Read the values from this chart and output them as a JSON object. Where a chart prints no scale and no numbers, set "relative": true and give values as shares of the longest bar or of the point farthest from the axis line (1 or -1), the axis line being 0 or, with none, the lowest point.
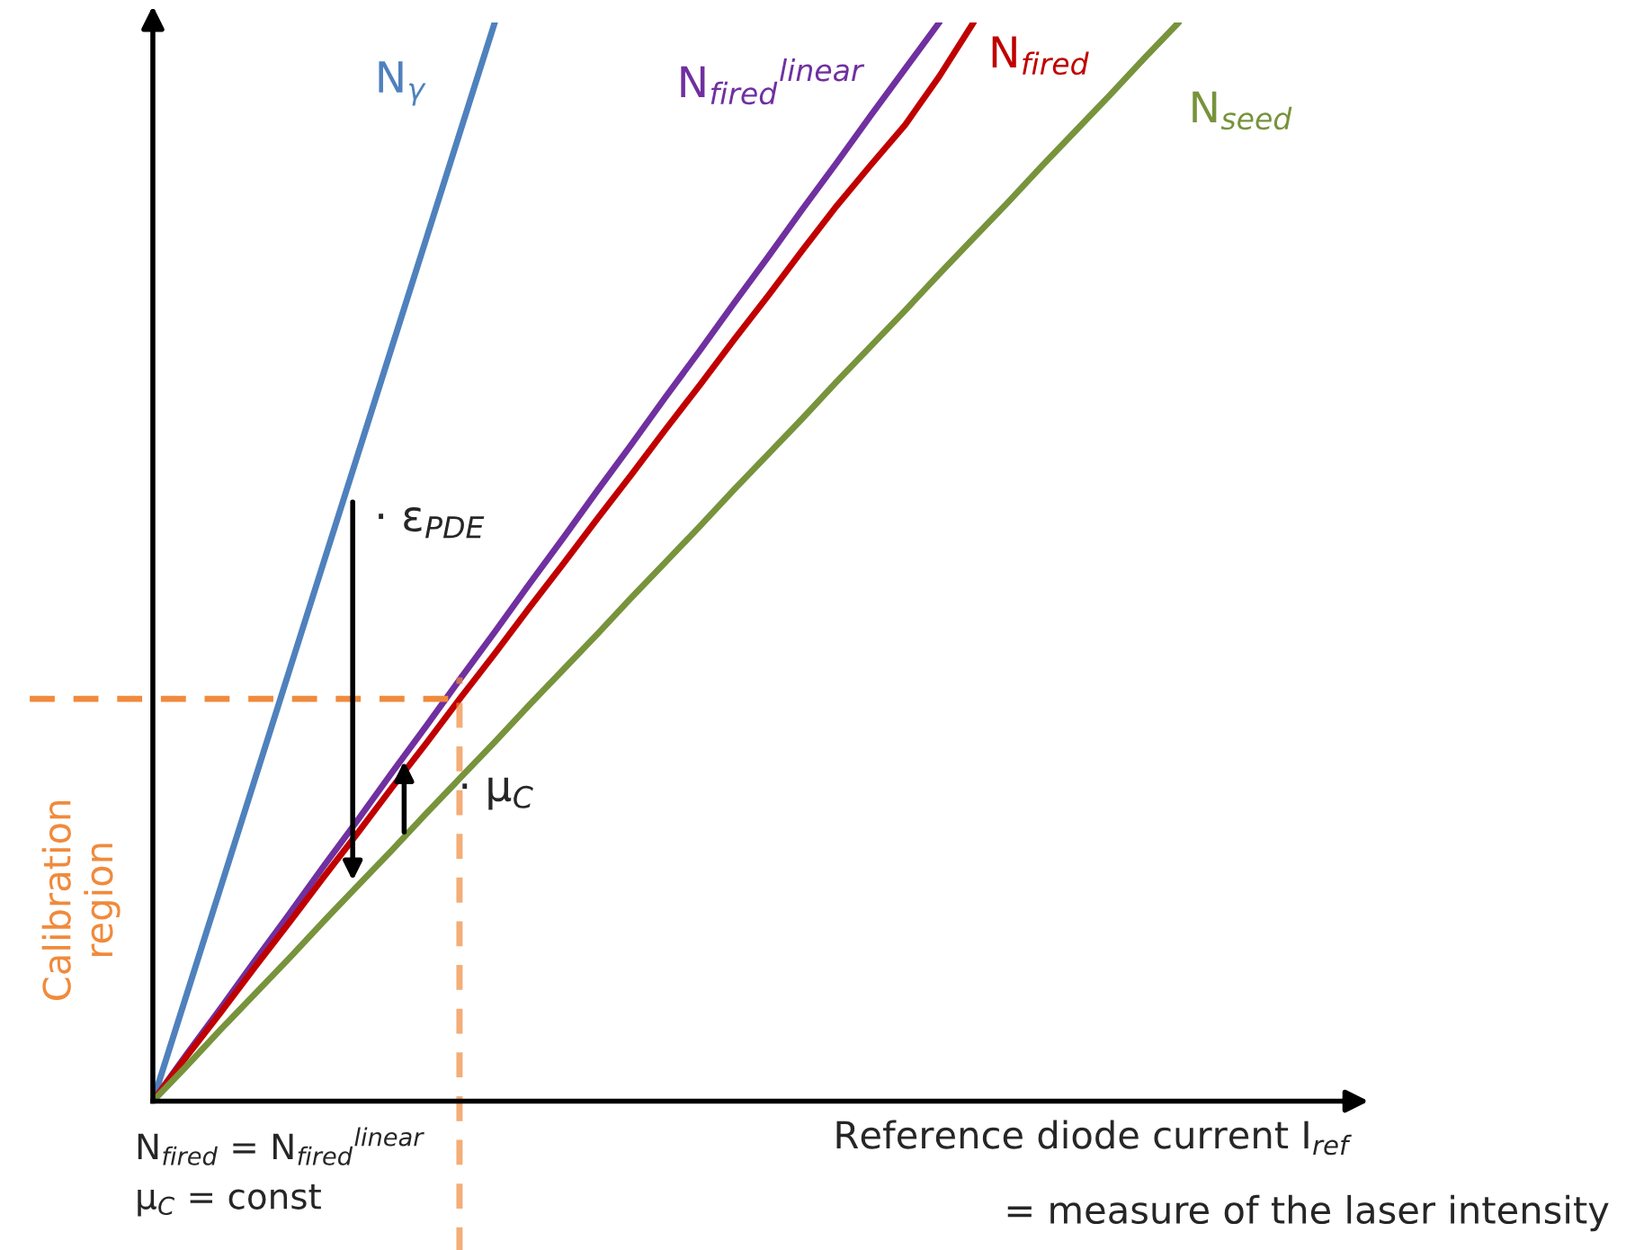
{
  "chart_data": {
    "type": "line",
    "relative": true,
    "grid": false,
    "legend": false,
    "marker": "none",
    "line_style": "solid",
    "xlabel": "Reference diode current I$_{ref}$",
    "categories": [
      null,
      null,
      null,
      null,
      null,
      null,
      null,
      null,
      null,
      null,
      null,
      null,
      null,
      null,
      null,
      null,
      null,
      null,
      null,
      null,
      null,
      null,
      null,
      null,
      null,
      null,
      null,
      null,
      null,
      null,
      null,
      null,
      null,
      null,
      null
    ],
    "series": [
      {
        "name": "N$_{γ}$",
        "color": "#4f81bd",
        "values": [
          0,
          0.1,
          0.2,
          0.3,
          0.4,
          0.5,
          0.6,
          0.7,
          0.8,
          0.9,
          1.0,
          null,
          null,
          null,
          null,
          null,
          null,
          null,
          null,
          null,
          null,
          null,
          null,
          null,
          null,
          null,
          null,
          null,
          null,
          null,
          null,
          null,
          null,
          null,
          null
        ]
      },
      {
        "name": "N$_{fired}$$^{linear}$",
        "color": "#7030a0",
        "values": [
          0,
          0.044,
          0.087,
          0.131,
          0.174,
          0.218,
          0.261,
          0.305,
          0.348,
          0.392,
          0.435,
          0.479,
          0.522,
          0.566,
          0.609,
          0.653,
          0.696,
          0.74,
          0.783,
          0.827,
          0.87,
          0.914,
          0.957,
          1.0,
          null,
          null,
          null,
          null,
          null,
          null,
          null,
          null,
          null,
          null,
          null
        ]
      },
      {
        "name": "N$_{fired}$",
        "color": "#c00000",
        "values": [
          0,
          0.042,
          0.083,
          0.125,
          0.166,
          0.208,
          0.249,
          0.291,
          0.332,
          0.374,
          0.415,
          0.457,
          0.498,
          0.54,
          0.581,
          0.623,
          0.664,
          0.706,
          0.747,
          0.789,
          0.83,
          0.868,
          0.905,
          0.95,
          1.0,
          null,
          null,
          null,
          null,
          null,
          null,
          null,
          null,
          null,
          null
        ]
      },
      {
        "name": "N$_{seed}$",
        "color": "#77933c",
        "values": [
          0,
          0.033,
          0.067,
          0.1,
          0.133,
          0.167,
          0.2,
          0.233,
          0.267,
          0.3,
          0.333,
          0.367,
          0.4,
          0.433,
          0.467,
          0.5,
          0.533,
          0.567,
          0.6,
          0.633,
          0.667,
          0.7,
          0.733,
          0.767,
          0.8,
          0.833,
          0.867,
          0.9,
          0.933,
          0.967,
          1.0,
          null,
          null,
          null,
          null
        ]
      }
    ],
    "ref_lines": [
      {
        "axis": "y",
        "value": 0.373,
        "label": "Calibration\nregion",
        "color": "#f08a3c",
        "line_style": "dashed"
      }
    ],
    "annotations": [
      "· ε$_{PDE}$",
      "· μ$_{C}$",
      "= measure of the laser intensity",
      "N$_{fired}$ = N$_{fired}$$^{linear}$\nμ$_{C}$ = const"
    ]
  }
}
